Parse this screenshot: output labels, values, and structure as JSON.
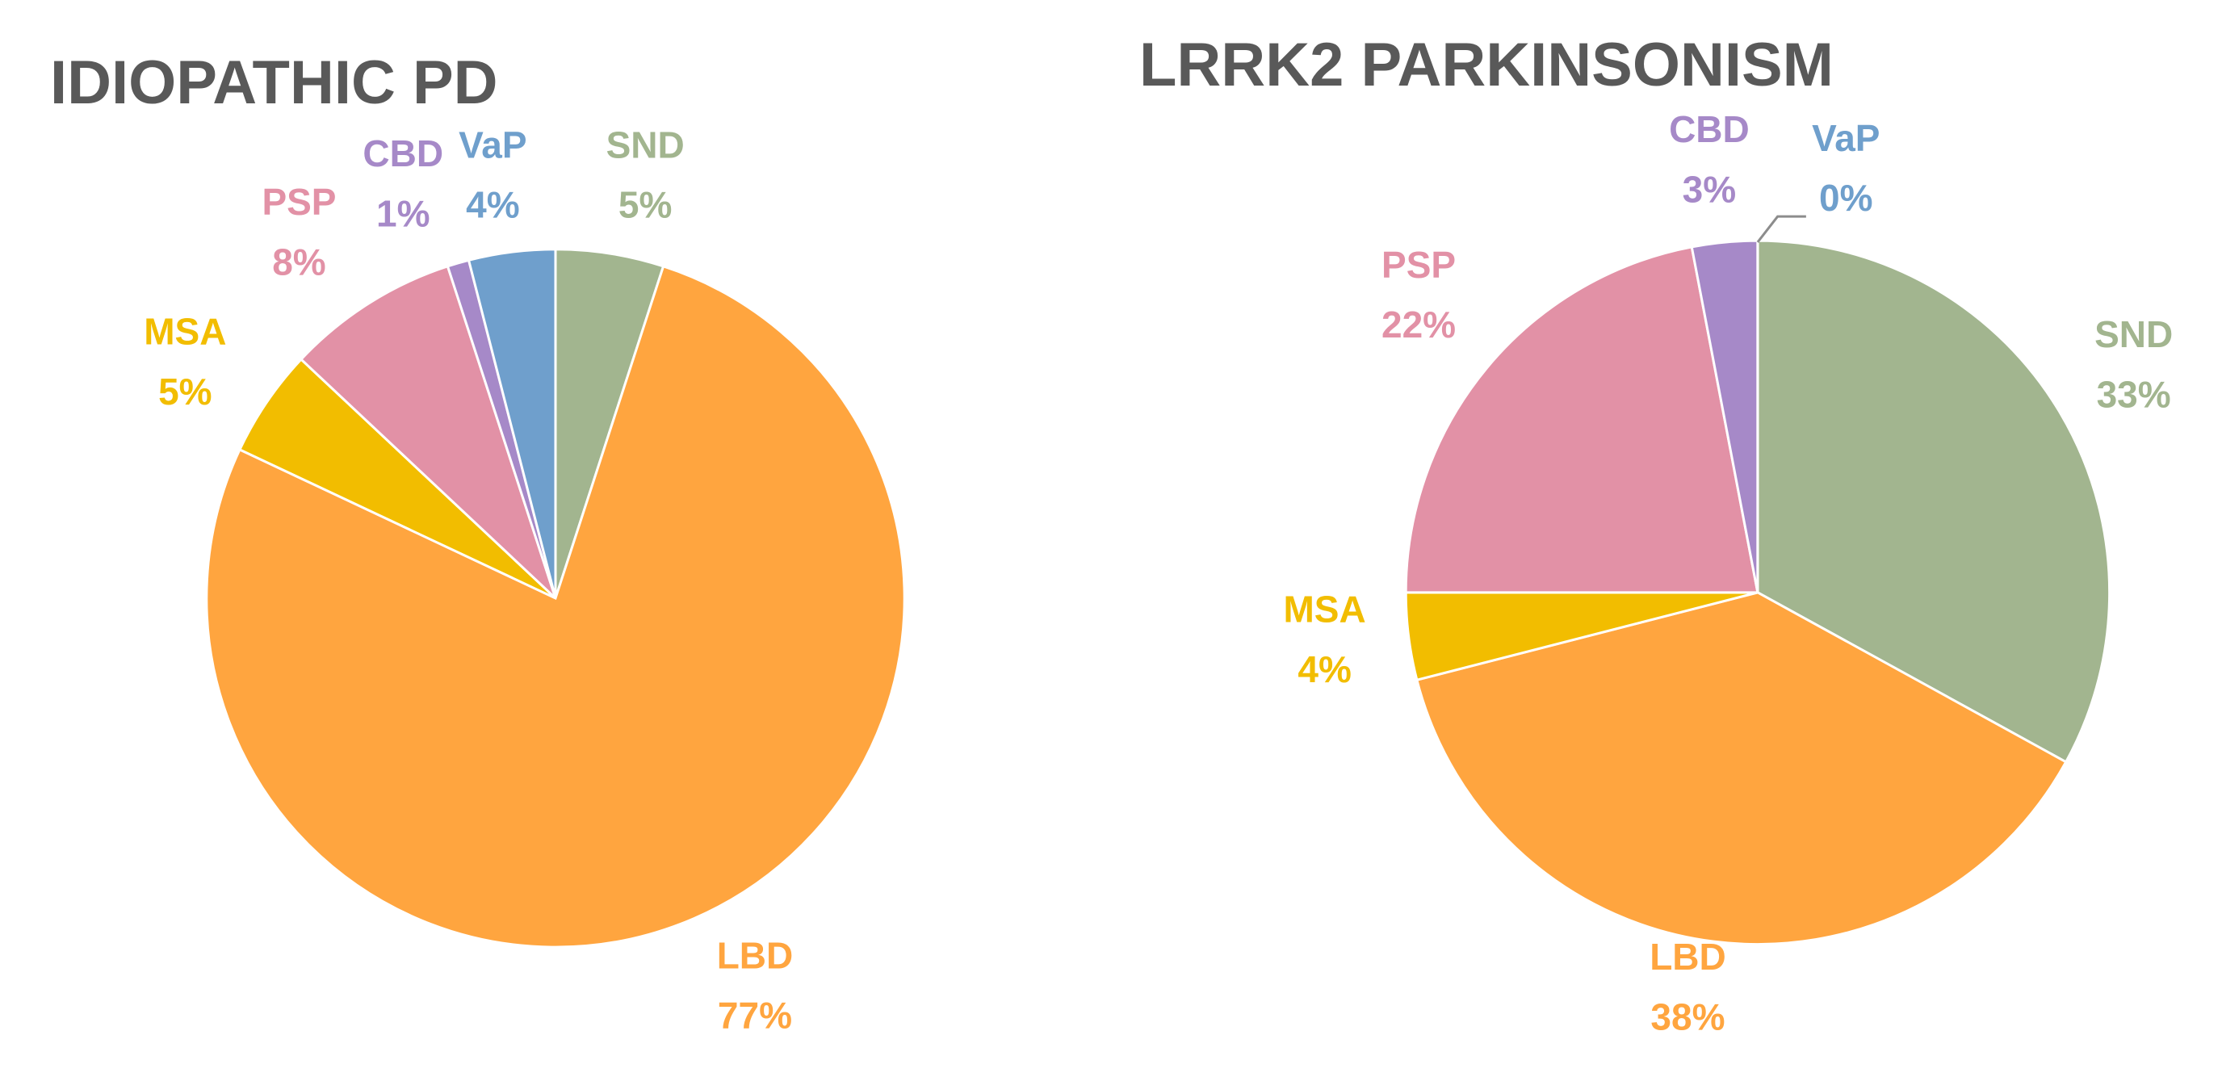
{
  "chart_data": [
    {
      "type": "pie",
      "title": "IDIOPATHIC PD",
      "categories": [
        "SND",
        "LBD",
        "MSA",
        "PSP",
        "CBD",
        "VaP"
      ],
      "values": [
        5,
        77,
        5,
        8,
        1,
        4
      ],
      "value_labels": [
        "5%",
        "77%",
        "5%",
        "8%",
        "1%",
        "4%"
      ],
      "colors": [
        "#a2b58f",
        "#ffa53f",
        "#f2bd00",
        "#e291a6",
        "#a689c8",
        "#6f9fcc"
      ]
    },
    {
      "type": "pie",
      "title": "LRRK2 PARKINSONISM",
      "categories": [
        "SND",
        "LBD",
        "MSA",
        "PSP",
        "CBD",
        "VaP"
      ],
      "values": [
        33,
        38,
        4,
        22,
        3,
        0
      ],
      "value_labels": [
        "33%",
        "38%",
        "4%",
        "22%",
        "3%",
        "0%"
      ],
      "colors": [
        "#a2b58f",
        "#ffa53f",
        "#f2bd00",
        "#e291a6",
        "#a689c8",
        "#6f9fcc"
      ]
    }
  ]
}
